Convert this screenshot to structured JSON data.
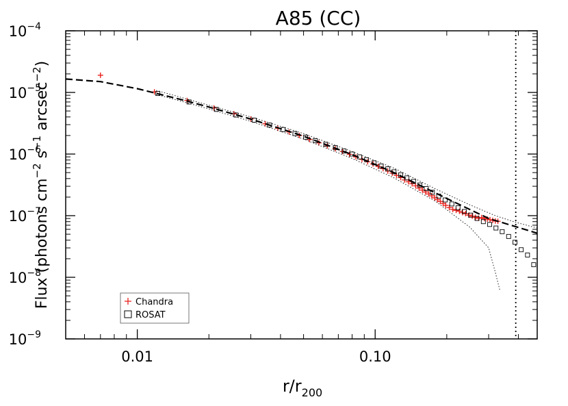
{
  "chart_data": {
    "type": "scatter",
    "title": "A85 (CC)",
    "xlabel": {
      "base": "r/r",
      "sub": "200"
    },
    "ylabel": {
      "parts": [
        {
          "t": "Flux (photons cm",
          "sup": ""
        },
        {
          "t": "",
          "sup": "−2"
        },
        {
          "t": " s",
          "sup": ""
        },
        {
          "t": "",
          "sup": "−1"
        },
        {
          "t": " arcsec",
          "sup": ""
        },
        {
          "t": "",
          "sup": "−2"
        },
        {
          "t": ")",
          "sup": ""
        }
      ]
    },
    "xscale": "log",
    "yscale": "log",
    "xlim": [
      0.005,
      0.48
    ],
    "ylim": [
      1e-09,
      0.0001
    ],
    "x_ticklabels": [
      {
        "value": 0.01,
        "label": "0.01"
      },
      {
        "value": 0.1,
        "label": "0.10"
      }
    ],
    "y_ticklabels": [
      {
        "value": 0.0001,
        "base": "10",
        "exp": "−4"
      },
      {
        "value": 1e-05,
        "base": "10",
        "exp": "−5"
      },
      {
        "value": 1e-06,
        "base": "10",
        "exp": "−6"
      },
      {
        "value": 1e-07,
        "base": "10",
        "exp": "−7"
      },
      {
        "value": 1e-08,
        "base": "10",
        "exp": "−8"
      },
      {
        "value": 1e-09,
        "base": "10",
        "exp": "−9"
      }
    ],
    "vline": {
      "x": 0.39,
      "style": "dotted"
    },
    "legend": {
      "position": "bottom-left",
      "entries": [
        {
          "name": "Chandra",
          "marker": "plus",
          "color": "#e8231e"
        },
        {
          "name": "ROSAT",
          "marker": "square",
          "color": "#000000"
        }
      ]
    },
    "series": [
      {
        "name": "Chandra",
        "marker": "plus",
        "color": "#e8231e",
        "x": [
          0.007,
          0.0118,
          0.0162,
          0.021,
          0.0255,
          0.03,
          0.0345,
          0.039,
          0.0435,
          0.048,
          0.053,
          0.058,
          0.063,
          0.068,
          0.073,
          0.078,
          0.083,
          0.088,
          0.093,
          0.098,
          0.103,
          0.108,
          0.113,
          0.118,
          0.123,
          0.128,
          0.133,
          0.138,
          0.143,
          0.148,
          0.153,
          0.158,
          0.163,
          0.168,
          0.173,
          0.178,
          0.183,
          0.188,
          0.193,
          0.198,
          0.205,
          0.212,
          0.219,
          0.226,
          0.233,
          0.24,
          0.248,
          0.256,
          0.264,
          0.272,
          0.28,
          0.288,
          0.296,
          0.304,
          0.312,
          0.32,
          0.328
        ],
        "y": [
          1.9e-05,
          1.02e-05,
          7.4e-06,
          5.6e-06,
          4.5e-06,
          3.7e-06,
          3.1e-06,
          2.62e-06,
          2.28e-06,
          2e-06,
          1.72e-06,
          1.52e-06,
          1.36e-06,
          1.22e-06,
          1.1e-06,
          9.9e-07,
          9e-07,
          8.2e-07,
          7.5e-07,
          6.9e-07,
          6.3e-07,
          5.8e-07,
          5.3e-07,
          4.9e-07,
          4.5e-07,
          4.15e-07,
          3.8e-07,
          3.55e-07,
          3.3e-07,
          3.05e-07,
          2.8e-07,
          2.6e-07,
          2.42e-07,
          2.25e-07,
          2.1e-07,
          1.95e-07,
          1.82e-07,
          1.7e-07,
          1.58e-07,
          1.47e-07,
          1.35e-07,
          1.26e-07,
          1.22e-07,
          1.18e-07,
          1.12e-07,
          1.08e-07,
          1.02e-07,
          9.8e-08,
          9.4e-08,
          9.1e-08,
          9.3e-08,
          9e-08,
          8.8e-08,
          8.6e-08,
          8.4e-08,
          8.2e-08,
          8.1e-08
        ]
      },
      {
        "name": "ROSAT",
        "marker": "square",
        "color": "#000000",
        "x": [
          0.0122,
          0.0165,
          0.0215,
          0.026,
          0.031,
          0.036,
          0.041,
          0.046,
          0.051,
          0.056,
          0.062,
          0.068,
          0.074,
          0.08,
          0.086,
          0.092,
          0.099,
          0.106,
          0.113,
          0.12,
          0.128,
          0.136,
          0.145,
          0.154,
          0.164,
          0.174,
          0.185,
          0.197,
          0.21,
          0.223,
          0.237,
          0.252,
          0.268,
          0.285,
          0.303,
          0.322,
          0.342,
          0.364,
          0.387,
          0.411,
          0.437,
          0.464
        ],
        "y": [
          9.6e-06,
          7e-06,
          5.3e-06,
          4.3e-06,
          3.55e-06,
          2.95e-06,
          2.5e-06,
          2.15e-06,
          1.88e-06,
          1.65e-06,
          1.44e-06,
          1.27e-06,
          1.12e-06,
          1e-06,
          9e-07,
          8.1e-07,
          7.2e-07,
          6.4e-07,
          5.75e-07,
          5.15e-07,
          4.6e-07,
          4.1e-07,
          3.6e-07,
          3.15e-07,
          2.75e-07,
          2.4e-07,
          2.08e-07,
          1.8e-07,
          1.55e-07,
          1.34e-07,
          1.17e-07,
          1.02e-07,
          9e-08,
          8e-08,
          7.2e-08,
          6.3e-08,
          5.5e-08,
          4.6e-08,
          3.7e-08,
          2.8e-08,
          2.3e-08,
          1.6e-08
        ]
      },
      {
        "name": "",
        "style": "dashed",
        "color": "#000000",
        "x": [
          0.005,
          0.007,
          0.01,
          0.015,
          0.02,
          0.03,
          0.05,
          0.08,
          0.12,
          0.2,
          0.3,
          0.48
        ],
        "y": [
          1.65e-05,
          1.5e-05,
          1.15e-05,
          7.8e-06,
          5.8e-06,
          3.7e-06,
          1.95e-06,
          9.8e-07,
          5e-07,
          1.9e-07,
          9e-08,
          5.2e-08
        ]
      },
      {
        "name": "",
        "style": "dotted-thin",
        "color": "#000000",
        "x": [
          0.012,
          0.02,
          0.03,
          0.05,
          0.08,
          0.12,
          0.18,
          0.25,
          0.3,
          0.32,
          0.335
        ],
        "y": [
          9.3e-06,
          5.4e-06,
          3.4e-06,
          1.75e-06,
          8.5e-07,
          4.1e-07,
          1.7e-07,
          6.5e-08,
          3e-08,
          1.2e-08,
          6e-09
        ]
      },
      {
        "name": "",
        "style": "dotted-thin",
        "color": "#000000",
        "x": [
          0.012,
          0.02,
          0.03,
          0.05,
          0.08,
          0.12,
          0.18,
          0.25,
          0.32,
          0.39,
          0.48
        ],
        "y": [
          1.08e-05,
          6.2e-06,
          4e-06,
          2.15e-06,
          1.1e-06,
          5.9e-07,
          2.7e-07,
          1.5e-07,
          1e-07,
          7.8e-08,
          6.3e-08
        ]
      }
    ]
  }
}
